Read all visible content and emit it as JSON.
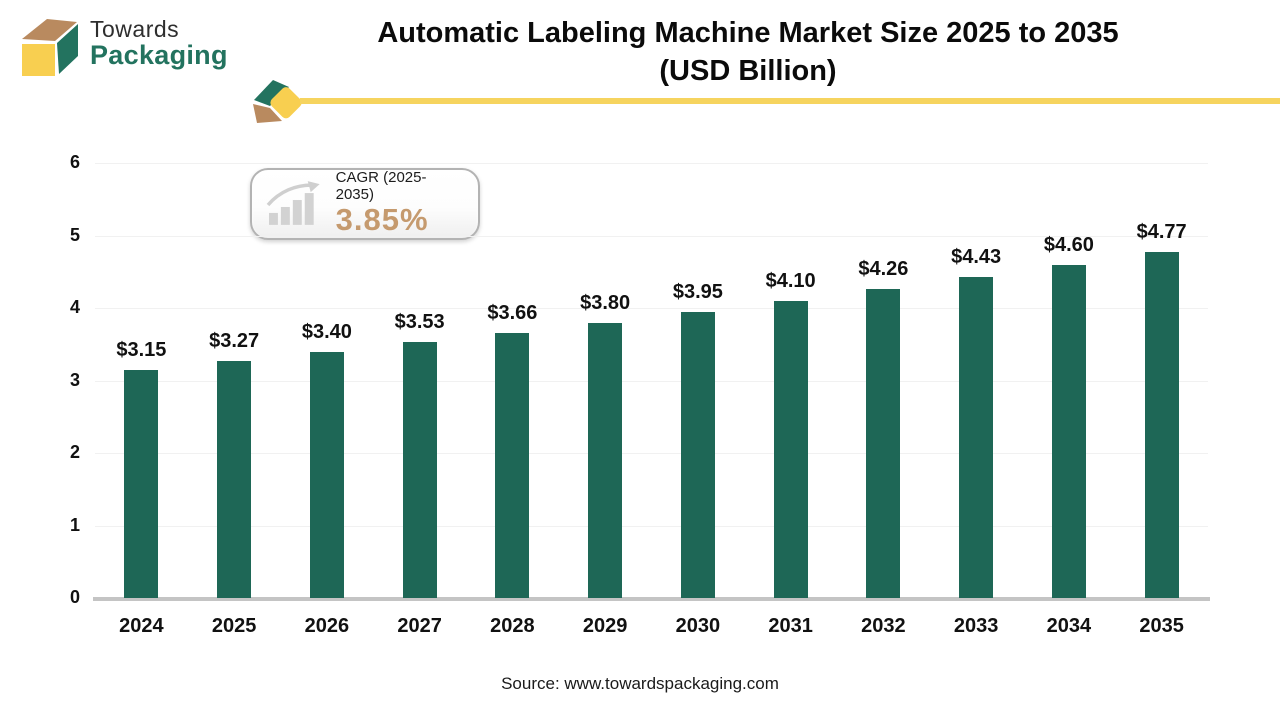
{
  "header": {
    "logo_text_top": "Towards",
    "logo_text_bottom": "Packaging",
    "title_line1": "Automatic Labeling Machine Market Size 2025 to 2035",
    "title_line2": "(USD Billion)"
  },
  "cagr_badge": {
    "label": "CAGR (2025-2035)",
    "value": "3.85%"
  },
  "chart_data": {
    "type": "bar",
    "title": "Automatic Labeling Machine Market Size 2025 to 2035 (USD Billion)",
    "categories": [
      "2024",
      "2025",
      "2026",
      "2027",
      "2028",
      "2029",
      "2030",
      "2031",
      "2032",
      "2033",
      "2034",
      "2035"
    ],
    "values": [
      3.15,
      3.27,
      3.4,
      3.53,
      3.66,
      3.8,
      3.95,
      4.1,
      4.26,
      4.43,
      4.6,
      4.77
    ],
    "bar_labels": [
      "$3.15",
      "$3.27",
      "$3.40",
      "$3.53",
      "$3.66",
      "$3.80",
      "$3.95",
      "$4.10",
      "$4.26",
      "$4.43",
      "$4.60",
      "$4.77"
    ],
    "unit": "USD Billion",
    "xlabel": "",
    "ylabel": "",
    "ylim": [
      0,
      6
    ],
    "yticks": [
      0,
      1,
      2,
      3,
      4,
      5,
      6
    ],
    "grid": true,
    "legend": false
  },
  "footer": {
    "source": "Source: www.towardspackaging.com"
  },
  "colors": {
    "bar": "#1e6756",
    "logo_green": "#23735f",
    "logo_tan": "#b98a5f",
    "logo_yellow": "#f8cf50",
    "divider_yellow": "#f6d45f",
    "cagr_value": "#c59a6e",
    "axis_text": "#111111",
    "baseline": "#c4c4c4",
    "gridline": "#f1f1f1"
  }
}
